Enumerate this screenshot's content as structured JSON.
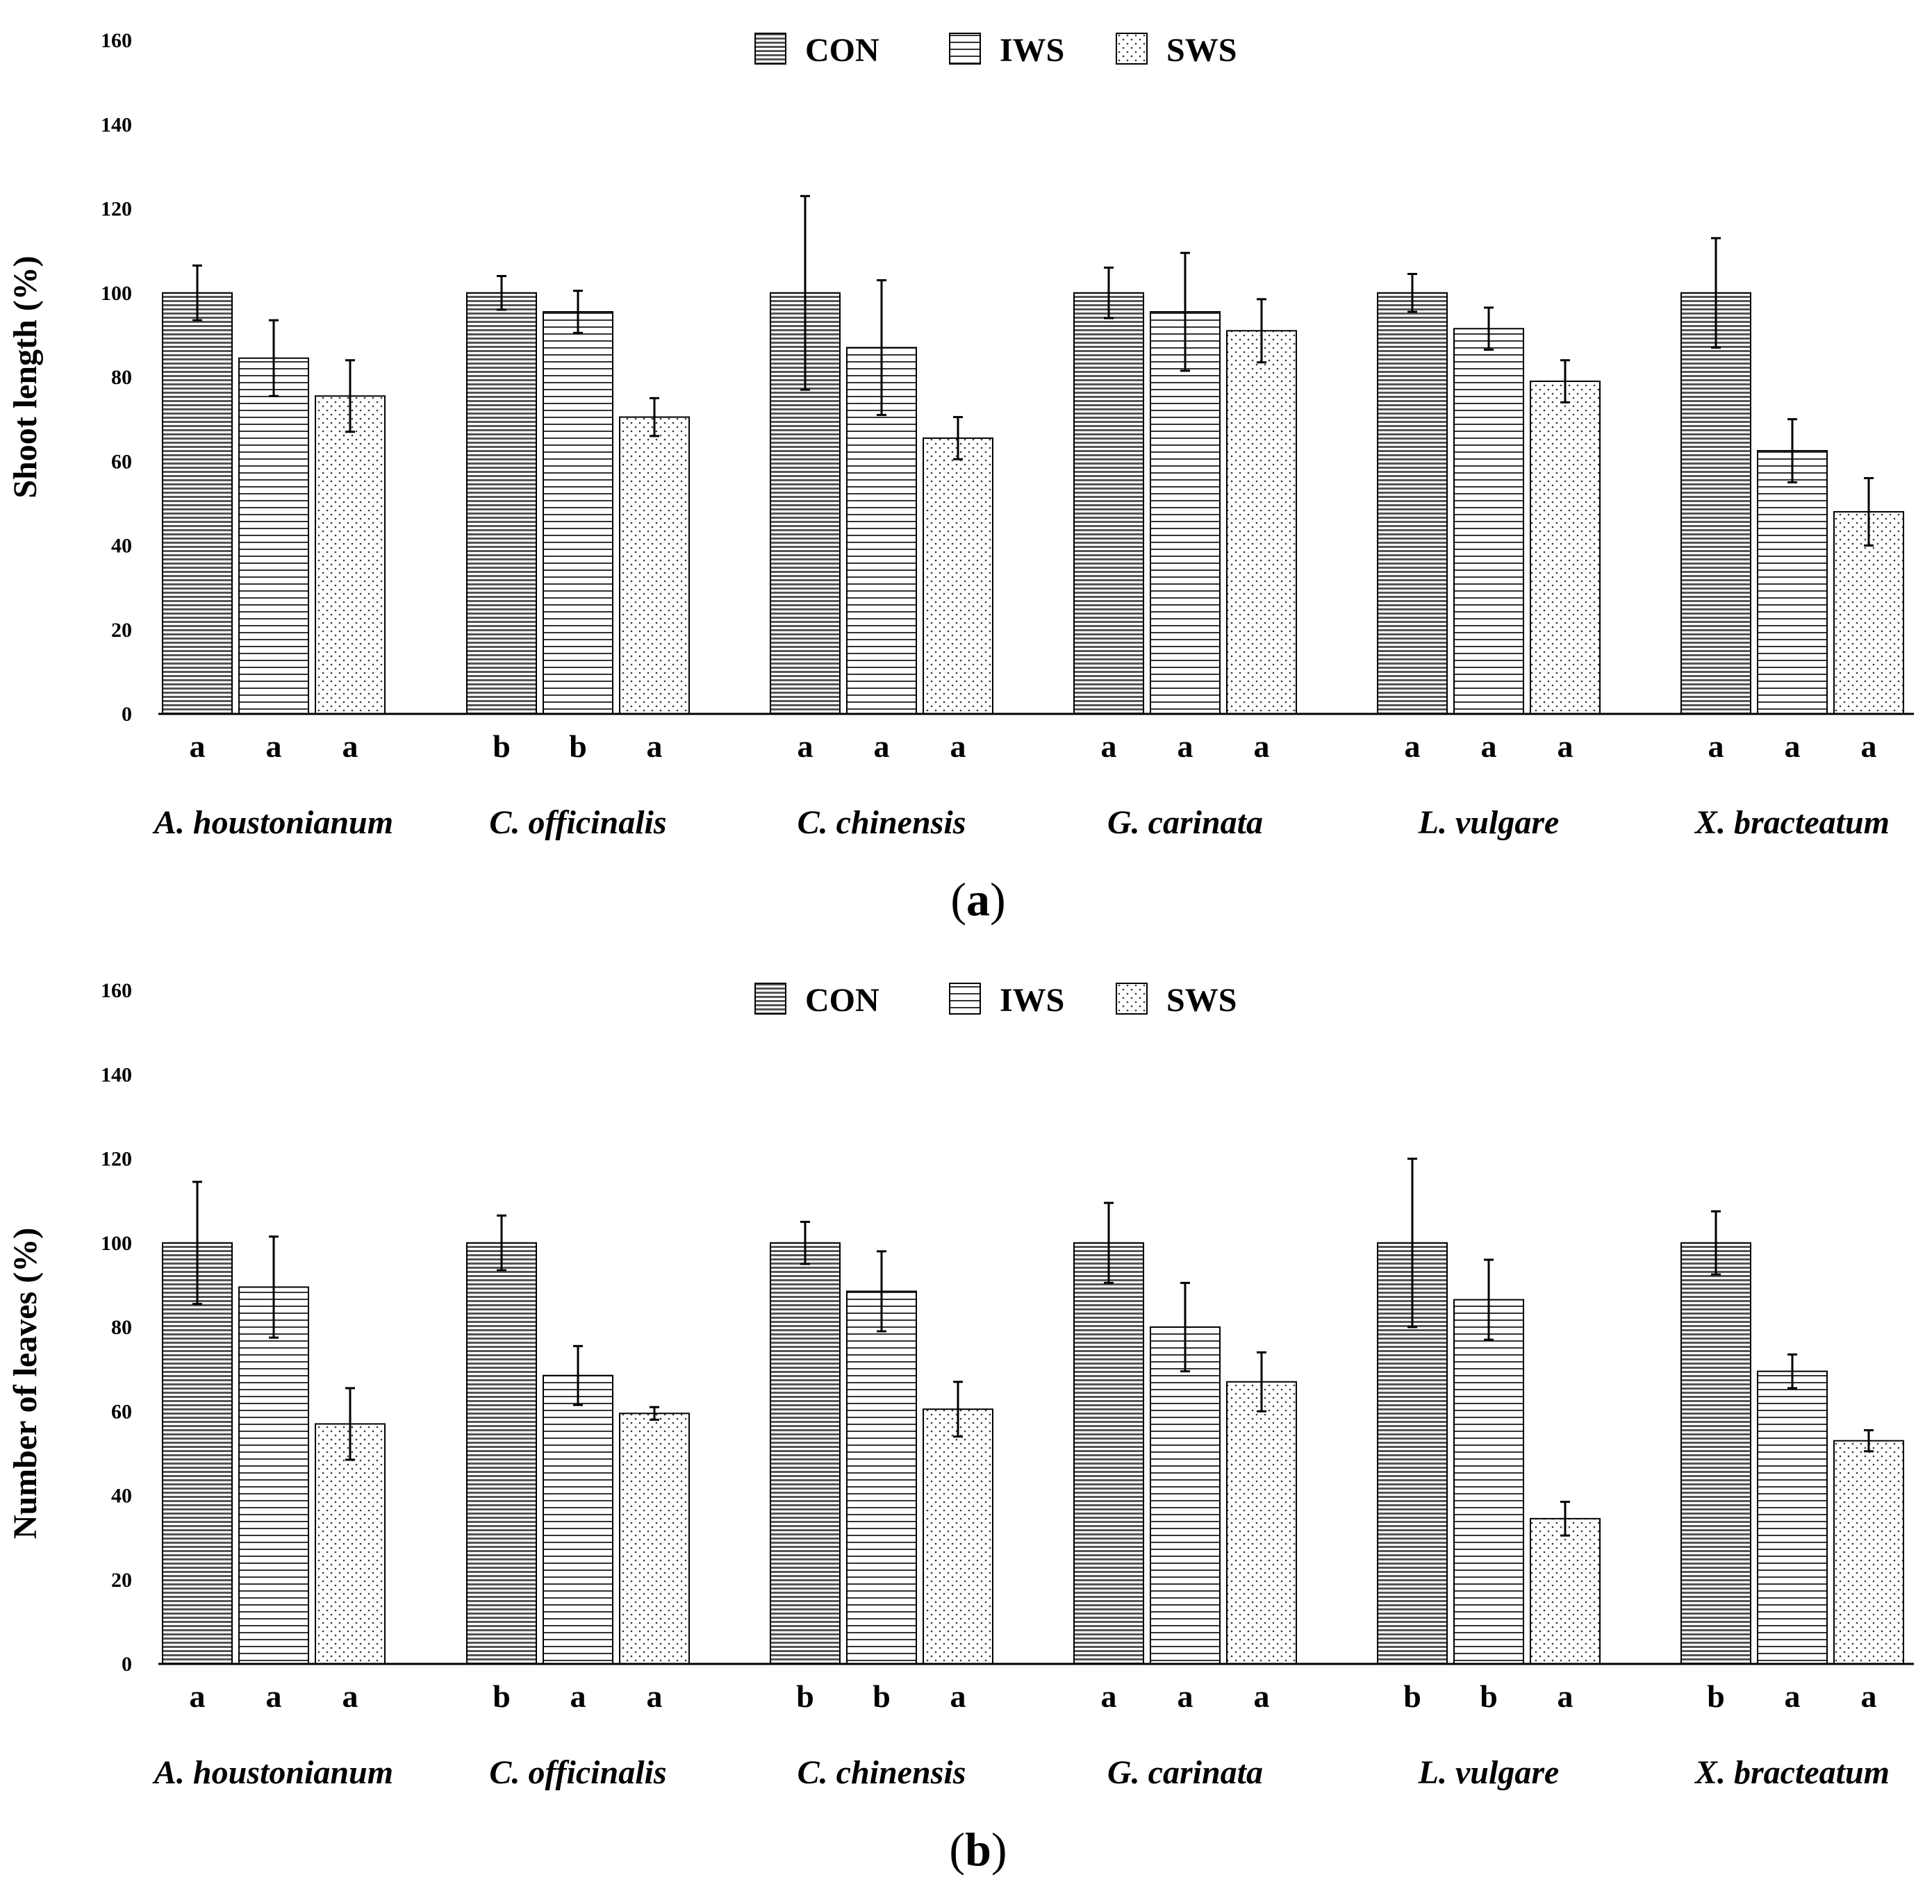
{
  "legend": [
    "CON",
    "IWS",
    "SWS"
  ],
  "chart_data": [
    {
      "type": "bar",
      "panel_label": "a",
      "ylabel": "Shoot length (%)",
      "ylim": [
        0,
        160
      ],
      "yticks": [
        0,
        20,
        40,
        60,
        80,
        100,
        120,
        140,
        160
      ],
      "categories": [
        "A. houstonianum",
        "C. officinalis",
        "C. chinensis",
        "G. carinata",
        "L. vulgare",
        "X. bracteatum"
      ],
      "series": [
        {
          "name": "CON",
          "values": [
            100,
            100,
            100,
            100,
            100,
            100
          ],
          "errors": [
            6.5,
            4,
            23,
            6,
            4.5,
            13
          ]
        },
        {
          "name": "IWS",
          "values": [
            84.5,
            95.5,
            87,
            95.5,
            91.5,
            62.5
          ],
          "errors": [
            9,
            5,
            16,
            14,
            5,
            7.5
          ]
        },
        {
          "name": "SWS",
          "values": [
            75.5,
            70.5,
            65.5,
            91,
            79,
            48
          ],
          "errors": [
            8.5,
            4.5,
            5,
            7.5,
            5,
            8
          ]
        }
      ],
      "letters": [
        [
          "a",
          "a",
          "a"
        ],
        [
          "b",
          "b",
          "a"
        ],
        [
          "a",
          "a",
          "a"
        ],
        [
          "a",
          "a",
          "a"
        ],
        [
          "a",
          "a",
          "a"
        ],
        [
          "a",
          "a",
          "a"
        ]
      ]
    },
    {
      "type": "bar",
      "panel_label": "b",
      "ylabel": "Number of leaves (%)",
      "ylim": [
        0,
        160
      ],
      "yticks": [
        0,
        20,
        40,
        60,
        80,
        100,
        120,
        140,
        160
      ],
      "categories": [
        "A. houstonianum",
        "C. officinalis",
        "C. chinensis",
        "G. carinata",
        "L. vulgare",
        "X. bracteatum"
      ],
      "series": [
        {
          "name": "CON",
          "values": [
            100,
            100,
            100,
            100,
            100,
            100
          ],
          "errors": [
            14.5,
            6.5,
            5,
            9.5,
            20,
            7.5
          ]
        },
        {
          "name": "IWS",
          "values": [
            89.5,
            68.5,
            88.5,
            80,
            86.5,
            69.5
          ],
          "errors": [
            12,
            7,
            9.5,
            10.5,
            9.5,
            4
          ]
        },
        {
          "name": "SWS",
          "values": [
            57,
            59.5,
            60.5,
            67,
            34.5,
            53
          ],
          "errors": [
            8.5,
            1.5,
            6.5,
            7,
            4,
            2.5
          ]
        }
      ],
      "letters": [
        [
          "a",
          "a",
          "a"
        ],
        [
          "b",
          "a",
          "a"
        ],
        [
          "b",
          "b",
          "a"
        ],
        [
          "a",
          "a",
          "a"
        ],
        [
          "b",
          "b",
          "a"
        ],
        [
          "b",
          "a",
          "a"
        ]
      ]
    }
  ]
}
